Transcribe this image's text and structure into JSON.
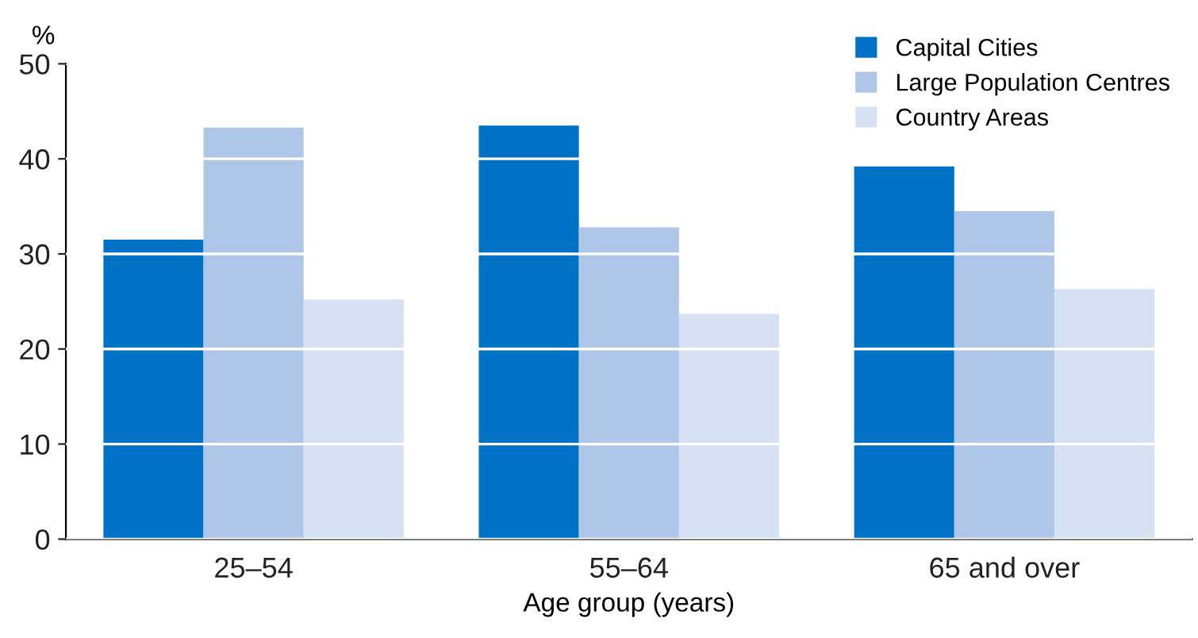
{
  "chart_data": {
    "type": "bar",
    "xlabel": "Age group (years)",
    "ylabel": "%",
    "categories": [
      "25–54",
      "55–64",
      "65 and over"
    ],
    "series": [
      {
        "name": "Capital Cities",
        "color": "#0072c6",
        "values": [
          31.5,
          43.5,
          39.2
        ]
      },
      {
        "name": "Large Population Centres",
        "color": "#aec6e8",
        "values": [
          43.3,
          32.8,
          34.5
        ]
      },
      {
        "name": "Country Areas",
        "color": "#d6e2f3",
        "values": [
          25.2,
          23.7,
          26.3
        ]
      }
    ],
    "ylim": [
      0,
      50
    ],
    "yticks": [
      0,
      10,
      20,
      30,
      40,
      50
    ],
    "grid": "y",
    "legend": "top right"
  }
}
